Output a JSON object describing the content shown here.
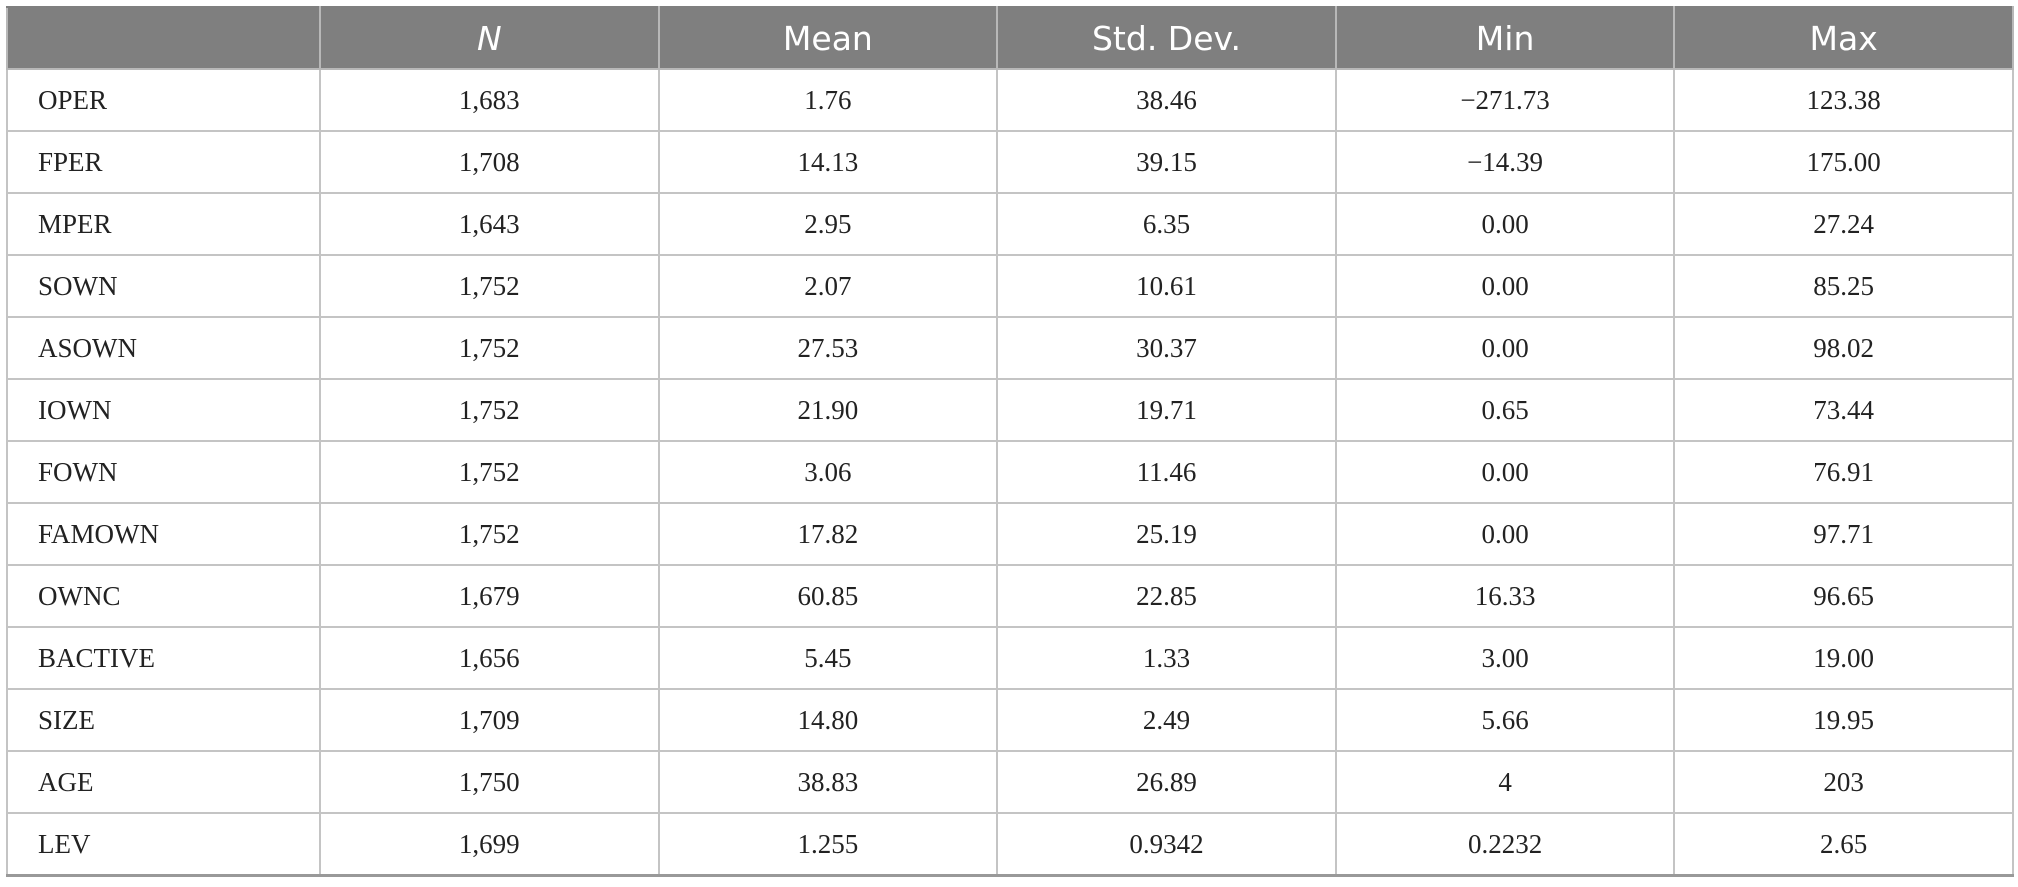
{
  "table": {
    "headers": [
      "",
      "N",
      "Mean",
      "Std. Dev.",
      "Min",
      "Max"
    ],
    "rows": [
      [
        "OPER",
        "1,683",
        "1.76",
        "38.46",
        "−271.73",
        "123.38"
      ],
      [
        "FPER",
        "1,708",
        "14.13",
        "39.15",
        "−14.39",
        "175.00"
      ],
      [
        "MPER",
        "1,643",
        "2.95",
        "6.35",
        "0.00",
        "27.24"
      ],
      [
        "SOWN",
        "1,752",
        "2.07",
        "10.61",
        "0.00",
        "85.25"
      ],
      [
        "ASOWN",
        "1,752",
        "27.53",
        "30.37",
        "0.00",
        "98.02"
      ],
      [
        "IOWN",
        "1,752",
        "21.90",
        "19.71",
        "0.65",
        "73.44"
      ],
      [
        "FOWN",
        "1,752",
        "3.06",
        "11.46",
        "0.00",
        "76.91"
      ],
      [
        "FAMOWN",
        "1,752",
        "17.82",
        "25.19",
        "0.00",
        "97.71"
      ],
      [
        "OWNC",
        "1,679",
        "60.85",
        "22.85",
        "16.33",
        "96.65"
      ],
      [
        "BACTIVE",
        "1,656",
        "5.45",
        "1.33",
        "3.00",
        "19.00"
      ],
      [
        "SIZE",
        "1,709",
        "14.80",
        "2.49",
        "5.66",
        "19.95"
      ],
      [
        "AGE",
        "1,750",
        "38.83",
        "26.89",
        "4",
        "203"
      ],
      [
        "LEV",
        "1,699",
        "1.255",
        "0.9342",
        "0.2232",
        "2.65"
      ]
    ]
  }
}
